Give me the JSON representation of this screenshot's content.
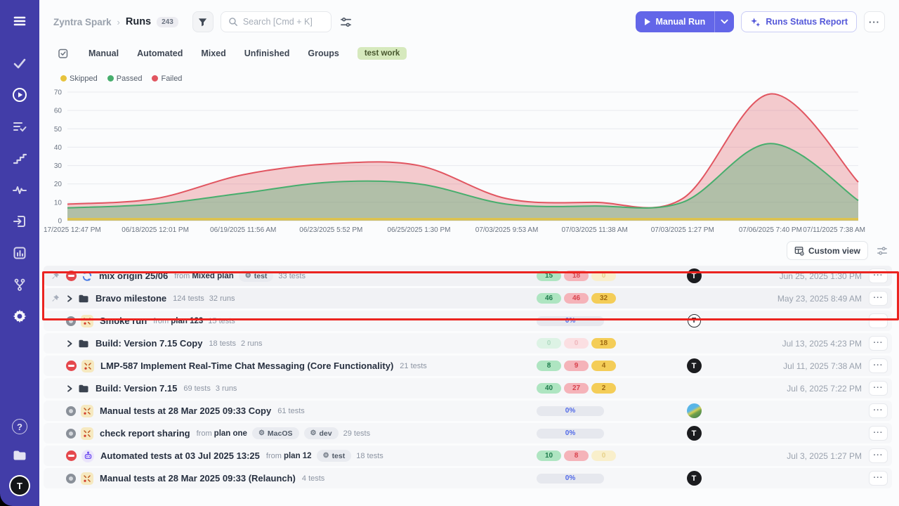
{
  "glyphs": {
    "ellipsis": "···",
    "gear": "⚙",
    "breadcrumb_separator": "›",
    "avatar_letter": "T",
    "help": "?"
  },
  "colors": {
    "accent": "#6366e8",
    "sidebar": "#423da8",
    "failed": "#e15560",
    "passed": "#47ae6d",
    "skipped": "#e7c33c"
  },
  "sidebar": {
    "icons": [
      "menu-icon",
      "testcases-check-icon",
      "runs-play-circle-icon",
      "plans-list-check-icon",
      "milestones-steps-icon",
      "activity-pulse-icon",
      "import-box-icon",
      "reports-chart-icon",
      "configurations-branch-icon",
      "settings-gear-icon"
    ],
    "bottom_icons": [
      "help-icon",
      "projects-folder-icon",
      "user-avatar"
    ]
  },
  "header": {
    "breadcrumb_parent": "Zyntra Spark",
    "breadcrumb_current": "Runs",
    "runs_count": "243",
    "search_placeholder": "Search [Cmd + K]",
    "manual_run_label": "Manual Run",
    "runs_status_report_label": "Runs Status Report"
  },
  "tabs": {
    "items": [
      "Manual",
      "Automated",
      "Mixed",
      "Unfinished",
      "Groups"
    ],
    "tag": "test work"
  },
  "chart_data": {
    "type": "area",
    "stacked": true,
    "title": "",
    "xlabel": "",
    "ylabel": "",
    "ylim": [
      0,
      70
    ],
    "y_ticks": [
      0,
      10,
      20,
      30,
      40,
      50,
      60,
      70
    ],
    "grid": true,
    "legend_position": "top-left",
    "x_labels": [
      "17/2025 12:47 PM",
      "06/18/2025 12:01 PM",
      "06/19/2025 11:56 AM",
      "06/23/2025 5:52 PM",
      "06/25/2025 1:30 PM",
      "07/03/2025 9:53 AM",
      "07/03/2025 11:38 AM",
      "07/03/2025 1:27 PM",
      "07/06/2025 7:40 PM",
      "07/11/2025 7:38 AM"
    ],
    "series": [
      {
        "name": "Skipped",
        "color": "#e7c33c",
        "fill": "rgba(231,195,60,0.55)",
        "values": [
          1,
          1,
          1,
          1,
          1,
          1,
          1,
          1,
          1,
          1
        ]
      },
      {
        "name": "Passed",
        "color": "#47ae6d",
        "fill": "rgba(71,174,109,0.38)",
        "values": [
          7,
          9,
          15,
          21,
          20,
          9,
          8,
          10,
          42,
          11
        ]
      },
      {
        "name": "Failed",
        "color": "#e15560",
        "fill": "rgba(225,85,96,0.30)",
        "values": [
          2,
          3,
          10,
          10,
          10,
          3,
          2,
          2,
          27,
          10
        ]
      }
    ]
  },
  "view_bar": {
    "custom_view_label": "Custom view"
  },
  "table": {
    "from_label": "from",
    "avatar_letter": "T",
    "rows": [
      {
        "pinned": true,
        "status": "failed",
        "type": "mixed",
        "title": "mix origin 25/06",
        "from": "Mixed plan",
        "tags": [
          "test"
        ],
        "meta": [
          "33 tests"
        ],
        "result": "badges",
        "badges": [
          {
            "v": "15",
            "c": "green"
          },
          {
            "v": "18",
            "c": "red"
          },
          {
            "v": "0",
            "c": "yellow",
            "dim": true
          }
        ],
        "avatar": "black",
        "date": "Jun 25, 2025 1:30 PM"
      },
      {
        "pinned": true,
        "expand": true,
        "type": "folder",
        "title": "Bravo milestone",
        "meta": [
          "124 tests",
          "32 runs"
        ],
        "result": "badges",
        "badges": [
          {
            "v": "46",
            "c": "green"
          },
          {
            "v": "46",
            "c": "red"
          },
          {
            "v": "32",
            "c": "yellow"
          }
        ],
        "date": "May 23, 2025 8:49 AM"
      },
      {
        "status": "idle",
        "type": "manual",
        "title": "Smoke run",
        "from": "plan 123",
        "meta": [
          "15 tests"
        ],
        "result": "progress",
        "progress": "0%",
        "avatar": "ring",
        "date": ""
      },
      {
        "expand": true,
        "type": "folder",
        "title": "Build: Version 7.15 Copy",
        "meta": [
          "18 tests",
          "2 runs"
        ],
        "result": "badges",
        "badges": [
          {
            "v": "0",
            "c": "green",
            "dim": true
          },
          {
            "v": "0",
            "c": "red",
            "dim": true
          },
          {
            "v": "18",
            "c": "yellow"
          }
        ],
        "date": "Jul 13, 2025 4:23 PM"
      },
      {
        "status": "failed",
        "type": "manual",
        "title": "LMP-587 Implement Real-Time Chat Messaging (Core Functionality)",
        "meta": [
          "21 tests"
        ],
        "result": "badges",
        "badges": [
          {
            "v": "8",
            "c": "green"
          },
          {
            "v": "9",
            "c": "red"
          },
          {
            "v": "4",
            "c": "yellow"
          }
        ],
        "avatar": "black",
        "date": "Jul 11, 2025 7:38 AM"
      },
      {
        "expand": true,
        "type": "folder",
        "title": "Build: Version 7.15",
        "meta": [
          "69 tests",
          "3 runs"
        ],
        "result": "badges",
        "badges": [
          {
            "v": "40",
            "c": "green"
          },
          {
            "v": "27",
            "c": "red"
          },
          {
            "v": "2",
            "c": "yellow"
          }
        ],
        "date": "Jul 6, 2025 7:22 PM"
      },
      {
        "status": "idle",
        "type": "manual",
        "title": "Manual tests at 28 Mar 2025 09:33 Copy",
        "meta": [
          "61 tests"
        ],
        "result": "progress",
        "progress": "0%",
        "avatar": "photo",
        "date": ""
      },
      {
        "status": "idle",
        "type": "manual",
        "title": "check report sharing",
        "from": "plan one",
        "tags": [
          "MacOS",
          "dev"
        ],
        "meta": [
          "29 tests"
        ],
        "result": "progress",
        "progress": "0%",
        "avatar": "black",
        "date": ""
      },
      {
        "status": "failed",
        "type": "automated",
        "title": "Automated tests at 03 Jul 2025 13:25",
        "from": "plan 12",
        "tags": [
          "test"
        ],
        "meta": [
          "18 tests"
        ],
        "result": "badges",
        "badges": [
          {
            "v": "10",
            "c": "green"
          },
          {
            "v": "8",
            "c": "red"
          },
          {
            "v": "0",
            "c": "yellow",
            "dim": true
          }
        ],
        "date": "Jul 3, 2025 1:27 PM"
      },
      {
        "status": "idle",
        "type": "manual",
        "title": "Manual tests at 28 Mar 2025 09:33 (Relaunch)",
        "meta": [
          "4 tests"
        ],
        "result": "progress",
        "progress": "0%",
        "avatar": "black",
        "date": ""
      }
    ]
  }
}
